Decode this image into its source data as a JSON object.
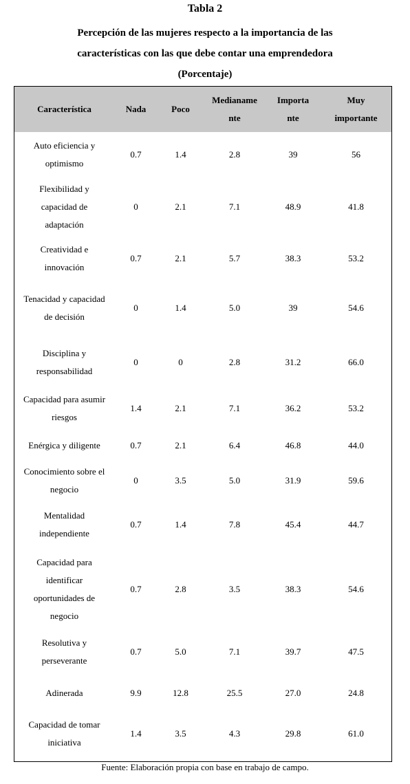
{
  "title": "Tabla 2",
  "subtitle_lines": [
    "Percepción de las mujeres respecto a la importancia de las",
    "características con las que debe contar una emprendedora",
    "(Porcentaje)"
  ],
  "table": {
    "header": [
      [
        "Característica"
      ],
      [
        "Nada"
      ],
      [
        "Poco"
      ],
      [
        "Medianame",
        "nte"
      ],
      [
        "Importa",
        "nte"
      ],
      [
        "Muy",
        "importante"
      ]
    ],
    "rows": [
      [
        "Auto eficiencia y optimismo",
        "0.7",
        "1.4",
        "2.8",
        "39",
        "56"
      ],
      [
        "Flexibilidad y capacidad de adaptación",
        "0",
        "2.1",
        "7.1",
        "48.9",
        "41.8"
      ],
      [
        "Creatividad e innovación",
        "0.7",
        "2.1",
        "5.7",
        "38.3",
        "53.2"
      ],
      [
        "Tenacidad y capacidad de decisión",
        "0",
        "1.4",
        "5.0",
        "39",
        "54.6"
      ],
      [
        "Disciplina y responsabilidad",
        "0",
        "0",
        "2.8",
        "31.2",
        "66.0"
      ],
      [
        "Capacidad para asumir riesgos",
        "1.4",
        "2.1",
        "7.1",
        "36.2",
        "53.2"
      ],
      [
        "Enérgica y diligente",
        "0.7",
        "2.1",
        "6.4",
        "46.8",
        "44.0"
      ],
      [
        "Conocimiento sobre el negocio",
        "0",
        "3.5",
        "5.0",
        "31.9",
        "59.6"
      ],
      [
        "Mentalidad independiente",
        "0.7",
        "1.4",
        "7.8",
        "45.4",
        "44.7"
      ],
      [
        "Capacidad para identificar oportunidades de negocio",
        "0.7",
        "2.8",
        "3.5",
        "38.3",
        "54.6"
      ],
      [
        "Resolutiva y perseverante",
        "0.7",
        "5.0",
        "7.1",
        "39.7",
        "47.5"
      ],
      [
        "Adinerada",
        "9.9",
        "12.8",
        "25.5",
        "27.0",
        "24.8"
      ],
      [
        "Capacidad de tomar iniciativa",
        "1.4",
        "3.5",
        "4.3",
        "29.8",
        "61.0"
      ]
    ]
  },
  "source": "Fuente: Elaboración propia con base en trabajo de campo."
}
